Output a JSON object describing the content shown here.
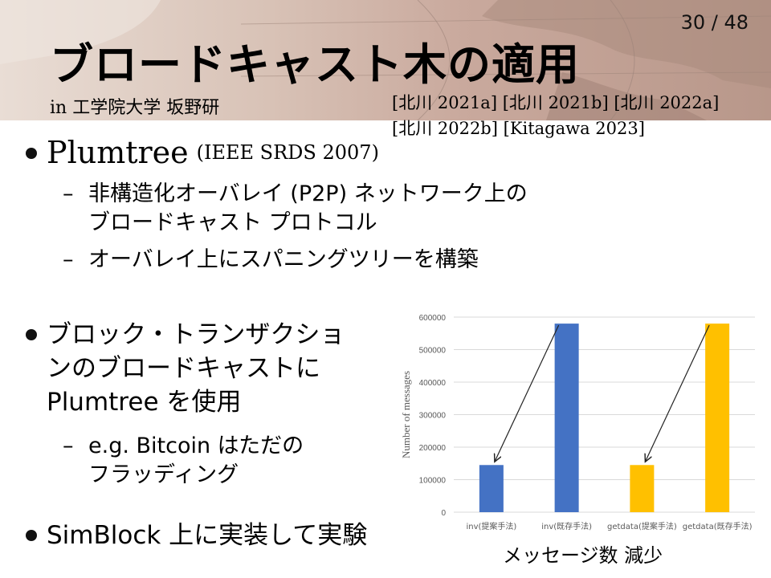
{
  "header": {
    "page_number": "30 / 48",
    "title": "ブロードキャスト木の適用",
    "affiliation": "in 工学院大学 坂野研",
    "refs_line1": "[北川 2021a] [北川 2021b] [北川 2022a]",
    "refs_line2": "[北川 2022b] [Kitagawa 2023]"
  },
  "body": {
    "plumtree_name": "Plumtree",
    "plumtree_venue": "(IEEE SRDS 2007)",
    "sub1_line1": "非構造化オーバレイ (P2P) ネットワーク上の",
    "sub1_line2": "ブロードキャスト プロトコル",
    "sub2": "オーバレイ上にスパニングツリーを構築",
    "block_line1": "ブロック・トランザクショ",
    "block_line2": "ンのブロードキャストに",
    "block_line3": "Plumtree を使用",
    "eg_line1": "e.g. Bitcoin はただの",
    "eg_line2": "フラッディング",
    "simblock": "SimBlock 上に実装して実験",
    "dash": "–"
  },
  "caption": "メッセージ数 減少",
  "chart_data": {
    "type": "bar",
    "categories": [
      "inv(提案手法)",
      "inv(既存手法)",
      "getdata(提案手法)",
      "getdata(既存手法)"
    ],
    "values": [
      145000,
      580000,
      145000,
      580000
    ],
    "colors": [
      "#4472c4",
      "#4472c4",
      "#ffc000",
      "#ffc000"
    ],
    "ylabel": "Number of messages",
    "ylim": [
      0,
      600000
    ],
    "yticks": [
      0,
      100000,
      200000,
      300000,
      400000,
      500000,
      600000
    ],
    "grid": true
  }
}
